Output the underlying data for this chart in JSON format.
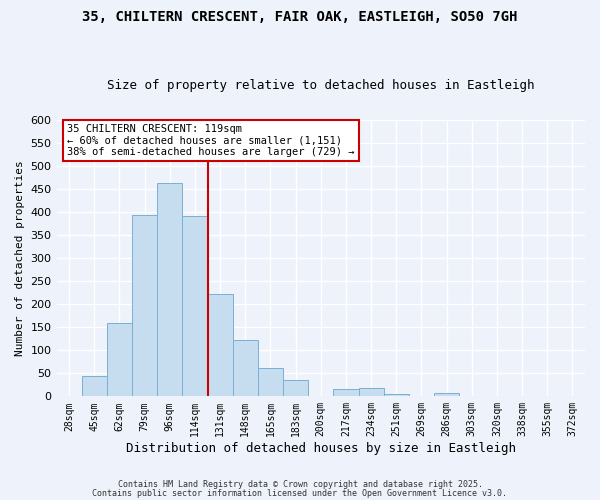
{
  "title": "35, CHILTERN CRESCENT, FAIR OAK, EASTLEIGH, SO50 7GH",
  "subtitle": "Size of property relative to detached houses in Eastleigh",
  "xlabel": "Distribution of detached houses by size in Eastleigh",
  "ylabel": "Number of detached properties",
  "bar_labels": [
    "28sqm",
    "45sqm",
    "62sqm",
    "79sqm",
    "96sqm",
    "114sqm",
    "131sqm",
    "148sqm",
    "165sqm",
    "183sqm",
    "200sqm",
    "217sqm",
    "234sqm",
    "251sqm",
    "269sqm",
    "286sqm",
    "303sqm",
    "320sqm",
    "338sqm",
    "355sqm",
    "372sqm"
  ],
  "bar_values": [
    0,
    45,
    160,
    393,
    463,
    390,
    221,
    122,
    62,
    35,
    0,
    15,
    18,
    5,
    0,
    8,
    0,
    0,
    0,
    0,
    0
  ],
  "bar_color": "#c6ddf0",
  "bar_edge_color": "#7ab0d4",
  "vline_x_idx": 5,
  "vline_color": "#cc0000",
  "ylim": [
    0,
    600
  ],
  "yticks": [
    0,
    50,
    100,
    150,
    200,
    250,
    300,
    350,
    400,
    450,
    500,
    550,
    600
  ],
  "annotation_title": "35 CHILTERN CRESCENT: 119sqm",
  "annotation_line1": "← 60% of detached houses are smaller (1,151)",
  "annotation_line2": "38% of semi-detached houses are larger (729) →",
  "annotation_box_color": "#ffffff",
  "annotation_box_edge": "#cc0000",
  "footer1": "Contains HM Land Registry data © Crown copyright and database right 2025.",
  "footer2": "Contains public sector information licensed under the Open Government Licence v3.0.",
  "background_color": "#eef2fa",
  "grid_color": "#ffffff"
}
